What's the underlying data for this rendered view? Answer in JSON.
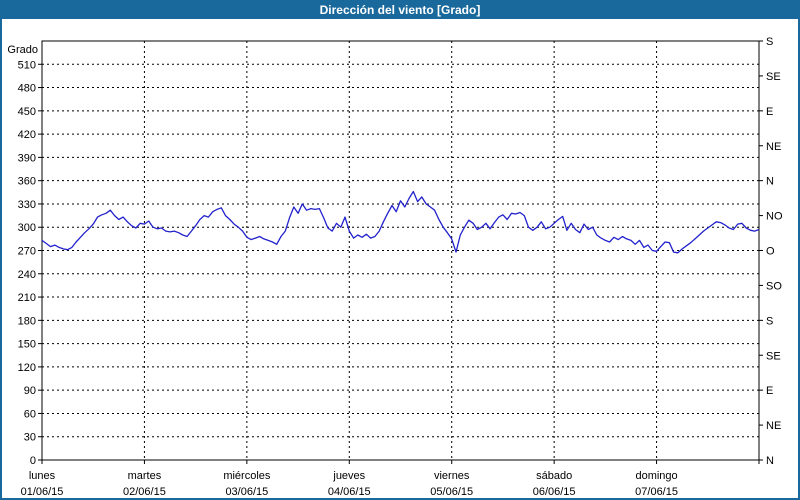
{
  "window": {
    "title": "Dirección del viento [Grado]",
    "title_bar_color": "#1A699C",
    "border_color": "#1A699C"
  },
  "chart_data": {
    "type": "line",
    "title": "Dirección del viento [Grado]",
    "ylabel": "Grado",
    "xlabel": "",
    "ylim": [
      0,
      540
    ],
    "grid": true,
    "legend": "none",
    "line_color": "#2222CC",
    "grid_color": "#000000",
    "y_ticks": [
      0,
      30,
      60,
      90,
      120,
      150,
      180,
      210,
      240,
      270,
      300,
      330,
      360,
      390,
      420,
      450,
      480,
      510
    ],
    "right_axis_labels": [
      {
        "value": 540,
        "label": "S"
      },
      {
        "value": 495,
        "label": "SE"
      },
      {
        "value": 450,
        "label": "E"
      },
      {
        "value": 405,
        "label": "NE"
      },
      {
        "value": 360,
        "label": "N"
      },
      {
        "value": 315,
        "label": "NO"
      },
      {
        "value": 270,
        "label": "O"
      },
      {
        "value": 225,
        "label": "SO"
      },
      {
        "value": 180,
        "label": "S"
      },
      {
        "value": 135,
        "label": "SE"
      },
      {
        "value": 90,
        "label": "E"
      },
      {
        "value": 45,
        "label": "NE"
      },
      {
        "value": 0,
        "label": "N"
      }
    ],
    "x_days": [
      {
        "name": "lunes",
        "date": "01/06/15"
      },
      {
        "name": "martes",
        "date": "02/06/15"
      },
      {
        "name": "miércoles",
        "date": "03/06/15"
      },
      {
        "name": "jueves",
        "date": "04/06/15"
      },
      {
        "name": "viernes",
        "date": "05/06/15"
      },
      {
        "name": "sábado",
        "date": "06/06/15"
      },
      {
        "name": "domingo",
        "date": "07/06/15"
      }
    ],
    "series": [
      {
        "name": "Dirección del viento",
        "unit": "Grado",
        "points_per_day": 24,
        "values": [
          283,
          279,
          275,
          277,
          274,
          272,
          271,
          274,
          281,
          287,
          293,
          298,
          304,
          313,
          316,
          318,
          322,
          315,
          310,
          313,
          307,
          302,
          299,
          305,
          304,
          308,
          300,
          298,
          299,
          295,
          294,
          295,
          293,
          290,
          288,
          295,
          302,
          310,
          315,
          313,
          320,
          323,
          325,
          315,
          310,
          304,
          300,
          295,
          287,
          284,
          286,
          288,
          285,
          283,
          281,
          278,
          288,
          295,
          312,
          326,
          318,
          330,
          322,
          324,
          323,
          324,
          312,
          299,
          295,
          305,
          300,
          313,
          295,
          286,
          290,
          287,
          291,
          286,
          288,
          295,
          307,
          318,
          328,
          320,
          334,
          326,
          337,
          346,
          333,
          339,
          330,
          326,
          322,
          310,
          300,
          293,
          285,
          268,
          290,
          300,
          309,
          305,
          297,
          300,
          305,
          298,
          306,
          313,
          316,
          310,
          318,
          317,
          319,
          315,
          300,
          296,
          300,
          307,
          298,
          300,
          305,
          310,
          314,
          296,
          305,
          297,
          293,
          304,
          297,
          300,
          290,
          286,
          283,
          281,
          287,
          284,
          288,
          285,
          283,
          278,
          283,
          274,
          277,
          270,
          269,
          275,
          281,
          280,
          268,
          267,
          272,
          276,
          280,
          285,
          290,
          295,
          299,
          303,
          307,
          306,
          303,
          299,
          297,
          304,
          305,
          299,
          296,
          295,
          297
        ]
      }
    ]
  }
}
